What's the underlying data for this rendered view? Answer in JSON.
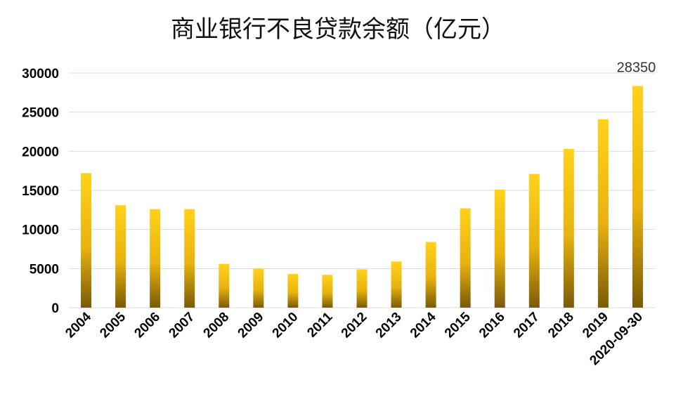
{
  "chart_data": {
    "type": "bar",
    "title": "商业银行不良贷款余额（亿元）",
    "categories": [
      "2004",
      "2005",
      "2006",
      "2007",
      "2008",
      "2009",
      "2010",
      "2011",
      "2012",
      "2013",
      "2014",
      "2015",
      "2016",
      "2017",
      "2018",
      "2019",
      "2020-09-30"
    ],
    "values": [
      17200,
      13100,
      12600,
      12600,
      5600,
      5000,
      4300,
      4200,
      4900,
      5900,
      8400,
      12700,
      15100,
      17100,
      20300,
      24100,
      28350
    ],
    "ylim": [
      0,
      30000
    ],
    "yticks": [
      0,
      5000,
      10000,
      15000,
      20000,
      25000,
      30000
    ],
    "ytick_labels": [
      "0",
      "5000",
      "10000",
      "15000",
      "20000",
      "25000",
      "30000"
    ],
    "data_labels": [
      {
        "index": 16,
        "text": "28350"
      }
    ],
    "grid": true,
    "colors": {
      "bar_top": "#ffd21a",
      "bar_mid": "#e8b20f",
      "bar_bottom": "#7a5a08",
      "grid": "#d9d9d9"
    }
  }
}
